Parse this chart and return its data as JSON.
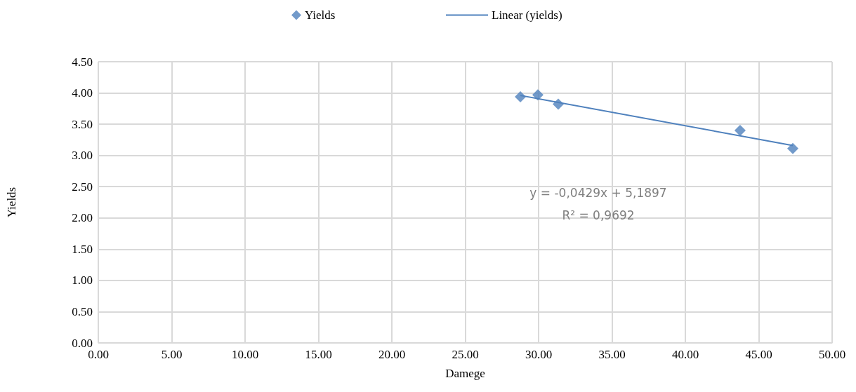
{
  "chart_data": {
    "type": "scatter",
    "xlabel": "Damege",
    "ylabel": "Yields",
    "marker": "diamond",
    "grid": true,
    "legend": "top",
    "xlim": [
      0,
      50
    ],
    "ylim": [
      0,
      4.5
    ],
    "xticks": [
      {
        "value": 0,
        "label": "0.00"
      },
      {
        "value": 5,
        "label": "5.00"
      },
      {
        "value": 10,
        "label": "10.00"
      },
      {
        "value": 15,
        "label": "15.00"
      },
      {
        "value": 20,
        "label": "20.00"
      },
      {
        "value": 25,
        "label": "25.00"
      },
      {
        "value": 30,
        "label": "30.00"
      },
      {
        "value": 35,
        "label": "35.00"
      },
      {
        "value": 40,
        "label": "40.00"
      },
      {
        "value": 45,
        "label": "45.00"
      },
      {
        "value": 50,
        "label": "50.00"
      }
    ],
    "yticks": [
      {
        "value": 0,
        "label": "0.00"
      },
      {
        "value": 0.5,
        "label": "0.50"
      },
      {
        "value": 1,
        "label": "1.00"
      },
      {
        "value": 1.5,
        "label": "1.50"
      },
      {
        "value": 2,
        "label": "2.00"
      },
      {
        "value": 2.5,
        "label": "2.50"
      },
      {
        "value": 3,
        "label": "3.00"
      },
      {
        "value": 3.5,
        "label": "3.50"
      },
      {
        "value": 4,
        "label": "4.00"
      },
      {
        "value": 4.5,
        "label": "4.50"
      }
    ],
    "series": [
      {
        "name": "Yields",
        "color": "#4f81bd",
        "x": [
          28.76,
          29.95,
          31.34,
          43.73,
          47.32
        ],
        "values": [
          3.94,
          3.97,
          3.82,
          3.4,
          3.11
        ]
      },
      {
        "name": "Linear (yields)",
        "type": "line",
        "color": "#4f81bd",
        "marker": "none",
        "x": [
          28.76,
          47.32
        ],
        "values": [
          3.96,
          3.16
        ]
      }
    ],
    "annotations": [
      "y = -0,0429x + 5,1897",
      "R² = 0,9692"
    ]
  }
}
